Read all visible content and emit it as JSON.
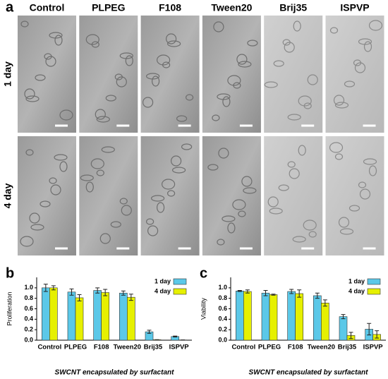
{
  "panel_a": {
    "label": "a",
    "columns": [
      "Control",
      "PLPEG",
      "F108",
      "Tween20",
      "Brij35",
      "ISPVP"
    ],
    "rows": [
      "1 day",
      "4 day"
    ]
  },
  "chart_data": [
    {
      "type": "bar",
      "label": "b",
      "ylabel": "Proliferation",
      "xlabel": "SWCNT encapsulated by surfactant",
      "categories": [
        "Control",
        "PLPEG",
        "F108",
        "Tween20",
        "Brij35",
        "ISPVP"
      ],
      "series": [
        {
          "name": "1 day",
          "color": "#5bc8e8",
          "values": [
            1.0,
            0.92,
            0.95,
            0.9,
            0.16,
            0.07
          ],
          "errors": [
            0.07,
            0.06,
            0.05,
            0.04,
            0.03,
            0.01
          ]
        },
        {
          "name": "4 day",
          "color": "#e6f000",
          "values": [
            1.0,
            0.81,
            0.91,
            0.82,
            0.01,
            0.005
          ],
          "errors": [
            0.04,
            0.06,
            0.06,
            0.06,
            0.0,
            0.0
          ]
        }
      ],
      "ylim": [
        0,
        1.2
      ],
      "yticks": [
        {
          "value": 0,
          "label": "0.0"
        },
        {
          "value": 0.2,
          "label": "0.2"
        },
        {
          "value": 0.4,
          "label": "0.4"
        },
        {
          "value": 0.6,
          "label": "0.6"
        },
        {
          "value": 0.8,
          "label": "0.8"
        },
        {
          "value": 1,
          "label": "1.0"
        }
      ],
      "legend": "upper right"
    },
    {
      "type": "bar",
      "label": "c",
      "ylabel": "Viability",
      "xlabel": "SWCNT encapsulated by surfactant",
      "categories": [
        "Control",
        "PLPEG",
        "F108",
        "Tween20",
        "Brij35",
        "ISPVP"
      ],
      "series": [
        {
          "name": "1 day",
          "color": "#5bc8e8",
          "values": [
            0.94,
            0.9,
            0.93,
            0.85,
            0.45,
            0.21
          ],
          "errors": [
            0.01,
            0.05,
            0.04,
            0.05,
            0.04,
            0.11
          ]
        },
        {
          "name": "4 day",
          "color": "#e6f000",
          "values": [
            0.93,
            0.87,
            0.89,
            0.71,
            0.09,
            0.11
          ],
          "errors": [
            0.03,
            0.01,
            0.07,
            0.06,
            0.06,
            0.07
          ]
        }
      ],
      "ylim": [
        0,
        1.2
      ],
      "yticks": [
        {
          "value": 0,
          "label": "0.0"
        },
        {
          "value": 0.2,
          "label": "0.2"
        },
        {
          "value": 0.4,
          "label": "0.4"
        },
        {
          "value": 0.6,
          "label": "0.6"
        },
        {
          "value": 0.8,
          "label": "0.8"
        },
        {
          "value": 1,
          "label": "1.0"
        }
      ],
      "legend": "upper right"
    }
  ]
}
